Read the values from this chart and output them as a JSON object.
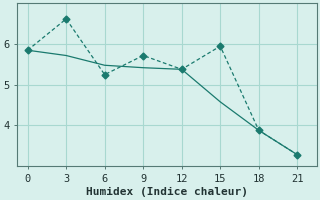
{
  "line1_x": [
    0,
    3,
    6,
    9,
    12,
    15,
    18,
    21
  ],
  "line1_y": [
    5.85,
    6.62,
    5.25,
    5.72,
    5.38,
    5.95,
    3.88,
    3.28
  ],
  "line2_x": [
    0,
    3,
    6,
    9,
    12,
    15,
    18,
    21
  ],
  "line2_y": [
    5.85,
    5.72,
    5.48,
    5.42,
    5.38,
    4.58,
    3.88,
    3.28
  ],
  "line_color": "#1a7a6e",
  "bg_color": "#d8f0ec",
  "grid_color": "#a8d8d0",
  "xlabel": "Humidex (Indice chaleur)",
  "xlabel_fontsize": 8,
  "xlim": [
    -0.8,
    22.5
  ],
  "ylim": [
    3.0,
    7.0
  ],
  "xticks": [
    0,
    3,
    6,
    9,
    12,
    15,
    18,
    21
  ],
  "yticks": [
    4,
    5,
    6
  ],
  "markersize": 3.5
}
